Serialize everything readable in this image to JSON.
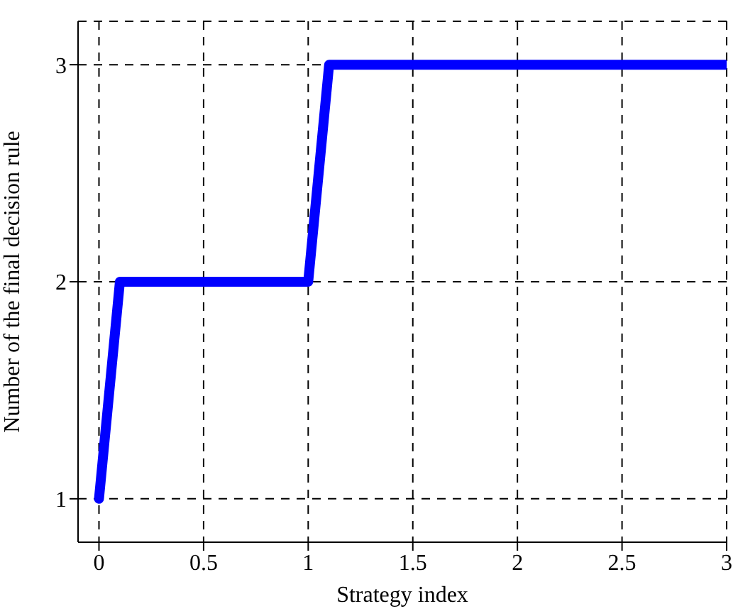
{
  "chart_data": {
    "type": "line",
    "xlabel": "Strategy index",
    "ylabel": "Number of the final decision rule",
    "x": [
      0,
      0.1,
      1,
      1.1,
      3
    ],
    "series": [
      {
        "color": "#0000ff",
        "values": [
          1,
          2,
          2,
          3,
          3
        ]
      }
    ],
    "xlim": [
      -0.1,
      3
    ],
    "xticks": [
      0,
      0.5,
      1,
      1.5,
      2,
      2.5,
      3
    ],
    "ylim": [
      0.8,
      3.2
    ],
    "yticks": [
      1,
      2,
      3
    ],
    "grid": true,
    "legend": false,
    "marker": "none",
    "line_style": "solid"
  }
}
